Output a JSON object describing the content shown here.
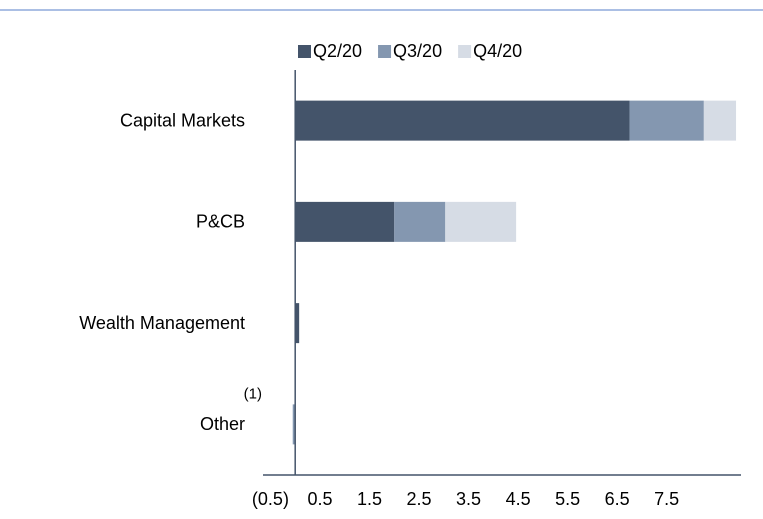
{
  "chart_data": {
    "type": "bar",
    "orientation": "horizontal",
    "stacked": true,
    "categories": [
      "Capital Markets",
      "P&CB",
      "Wealth Management",
      "Other"
    ],
    "category_annotations": [
      null,
      null,
      null,
      "(1)"
    ],
    "series": [
      {
        "name": "Q2/20",
        "color": "#44546a",
        "values": [
          6.75,
          2.0,
          0.08,
          0
        ]
      },
      {
        "name": "Q3/20",
        "color": "#8497b0",
        "values": [
          1.5,
          1.03,
          0,
          -0.05
        ]
      },
      {
        "name": "Q4/20",
        "color": "#d6dce5",
        "values": [
          0.65,
          1.43,
          0,
          0
        ]
      }
    ],
    "xlim": [
      -0.65,
      9.0
    ],
    "xticks": [
      {
        "value": -0.5,
        "label": "(0.5)"
      },
      0.5,
      1.5,
      2.5,
      3.5,
      4.5,
      5.5,
      6.5,
      7.5
    ],
    "grid": false,
    "legend": "top"
  }
}
